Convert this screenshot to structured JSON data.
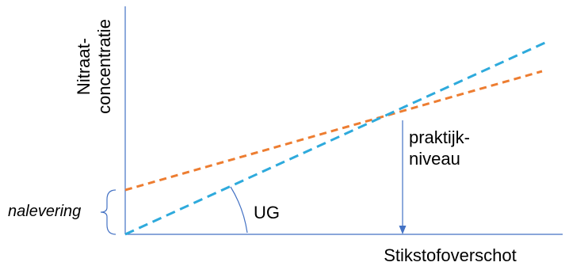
{
  "diagram": {
    "ylabel_line1": "Nitraat-",
    "ylabel_line2": "concentratie",
    "xlabel": "Stikstofoverschot",
    "practice_label_line1": "praktijk-",
    "practice_label_line2": "niveau",
    "angle_label": "UG",
    "offset_label": "nalevering",
    "colors": {
      "axes": "#4472C4",
      "blue_line": "#2EAADC",
      "orange_line": "#ED7D31",
      "text": "#000000"
    }
  }
}
